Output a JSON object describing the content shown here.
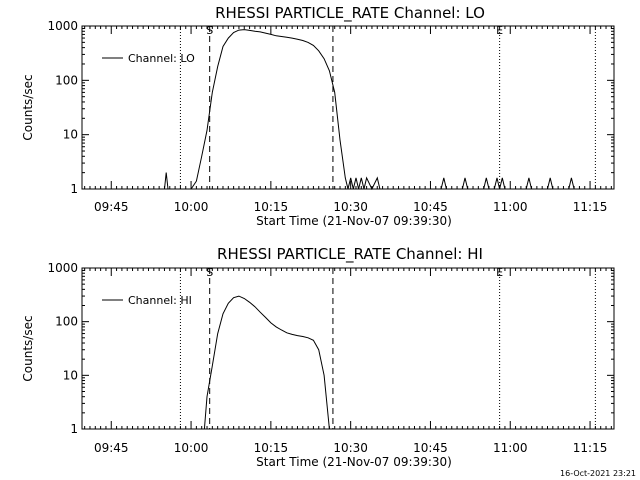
{
  "chart_data": [
    {
      "type": "line",
      "title": "RHESSI PARTICLE_RATE Channel: LO",
      "xlabel": "Start Time (21-Nov-07 09:39:30)",
      "ylabel": "Counts/sec",
      "y_scale": "log",
      "ylim": [
        1,
        1000
      ],
      "xlim": [
        "09:39:30",
        "11:19:30"
      ],
      "x_tick_labels": [
        "09:45",
        "10:00",
        "10:15",
        "10:30",
        "10:45",
        "11:00",
        "11:15"
      ],
      "y_tick_labels": [
        "1",
        "10",
        "100",
        "1000"
      ],
      "legend": {
        "label": "Channel: LO",
        "position": "top-left"
      },
      "markers": [
        {
          "label": "S",
          "time": "10:03:30",
          "style": "dashed"
        },
        {
          "label": "E",
          "time": "10:58:00",
          "style": "dotted"
        }
      ],
      "vlines": [
        {
          "time": "09:58:00",
          "style": "dotted"
        },
        {
          "time": "10:26:40",
          "style": "dashed"
        },
        {
          "time": "11:16:00",
          "style": "dotted"
        }
      ],
      "series": [
        {
          "name": "Channel: LO",
          "x": [
            "09:55:00",
            "09:55:20",
            "09:55:40",
            "10:00:00",
            "10:01:00",
            "10:02:00",
            "10:03:00",
            "10:04:00",
            "10:05:00",
            "10:06:00",
            "10:07:00",
            "10:08:00",
            "10:09:00",
            "10:10:00",
            "10:11:00",
            "10:12:00",
            "10:13:00",
            "10:14:00",
            "10:15:00",
            "10:16:00",
            "10:17:00",
            "10:18:00",
            "10:19:00",
            "10:20:00",
            "10:21:00",
            "10:22:00",
            "10:23:00",
            "10:24:00",
            "10:25:00",
            "10:26:00",
            "10:27:00",
            "10:28:00",
            "10:29:00",
            "10:29:30",
            "10:30:00",
            "10:30:30",
            "10:31:00",
            "10:31:30",
            "10:32:00",
            "10:32:30",
            "10:33:00",
            "10:34:00",
            "10:35:00",
            "10:35:30",
            "10:36:00",
            "10:47:00",
            "10:47:30",
            "10:48:00",
            "10:51:00",
            "10:51:30",
            "10:52:00",
            "10:55:00",
            "10:55:30",
            "10:56:00",
            "10:57:00",
            "10:57:30",
            "10:58:00",
            "10:58:30",
            "10:59:00",
            "11:03:00",
            "11:03:30",
            "11:04:00",
            "11:07:00",
            "11:07:30",
            "11:08:00",
            "11:11:00",
            "11:11:30",
            "11:12:00"
          ],
          "values": [
            1,
            2,
            1,
            1,
            1.4,
            4,
            12,
            60,
            180,
            420,
            600,
            760,
            840,
            860,
            830,
            800,
            780,
            740,
            700,
            660,
            640,
            620,
            600,
            570,
            540,
            500,
            440,
            350,
            250,
            150,
            60,
            8,
            1.6,
            1,
            1.6,
            1,
            1.6,
            1,
            1.6,
            1,
            1.6,
            1,
            1.6,
            1,
            1,
            1,
            1.6,
            1,
            1,
            1.6,
            1,
            1,
            1.6,
            1,
            1,
            1.6,
            1,
            1.6,
            1,
            1,
            1.6,
            1,
            1,
            1.6,
            1,
            1,
            1.6,
            1
          ]
        }
      ]
    },
    {
      "type": "line",
      "title": "RHESSI PARTICLE_RATE Channel: HI",
      "xlabel": "Start Time (21-Nov-07 09:39:30)",
      "ylabel": "Counts/sec",
      "y_scale": "log",
      "ylim": [
        1,
        1000
      ],
      "xlim": [
        "09:39:30",
        "11:19:30"
      ],
      "x_tick_labels": [
        "09:45",
        "10:00",
        "10:15",
        "10:30",
        "10:45",
        "11:00",
        "11:15"
      ],
      "y_tick_labels": [
        "1",
        "10",
        "100",
        "1000"
      ],
      "legend": {
        "label": "Channel: HI",
        "position": "top-left"
      },
      "markers": [
        {
          "label": "S",
          "time": "10:03:30",
          "style": "dashed"
        },
        {
          "label": "E",
          "time": "10:58:00",
          "style": "dotted"
        }
      ],
      "vlines": [
        {
          "time": "09:58:00",
          "style": "dotted"
        },
        {
          "time": "10:26:40",
          "style": "dashed"
        },
        {
          "time": "11:16:00",
          "style": "dotted"
        }
      ],
      "series": [
        {
          "name": "Channel: HI",
          "x": [
            "10:02:30",
            "10:03:00",
            "10:04:00",
            "10:05:00",
            "10:06:00",
            "10:07:00",
            "10:08:00",
            "10:09:00",
            "10:10:00",
            "10:11:00",
            "10:12:00",
            "10:13:00",
            "10:14:00",
            "10:15:00",
            "10:16:00",
            "10:17:00",
            "10:18:00",
            "10:19:00",
            "10:20:00",
            "10:21:00",
            "10:22:00",
            "10:23:00",
            "10:24:00",
            "10:25:00",
            "10:26:00"
          ],
          "values": [
            1,
            4,
            15,
            60,
            140,
            220,
            280,
            300,
            270,
            230,
            190,
            150,
            120,
            95,
            80,
            70,
            62,
            58,
            55,
            53,
            50,
            45,
            30,
            10,
            1
          ]
        }
      ]
    }
  ],
  "footer": {
    "timestamp": "16-Oct-2021 23:21"
  }
}
